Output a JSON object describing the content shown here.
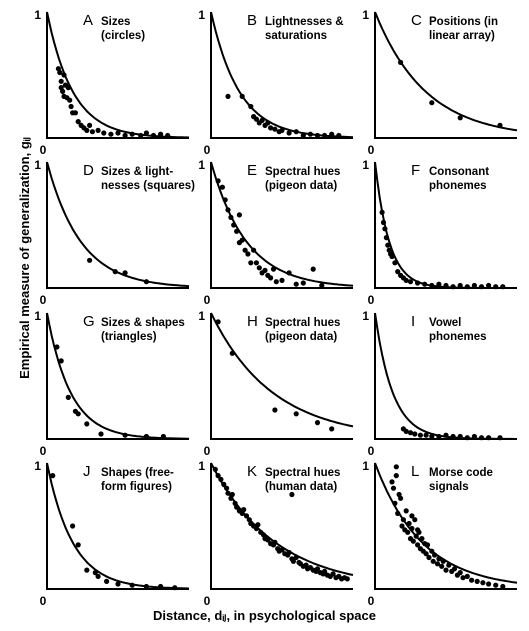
{
  "figure": {
    "ylabel": "Empirical measure of generalization, gᵢⱼ",
    "xlabel": "Distance, dᵢⱼ, in psychological space",
    "axis_one": "1",
    "axis_zero": "0"
  },
  "chart_data": [
    {
      "type": "scatter",
      "letter": "A",
      "label_lines": [
        "Sizes",
        "(circles)"
      ],
      "k": 5.5,
      "xlim": [
        0,
        1
      ],
      "ylim": [
        0,
        1
      ],
      "points": [
        [
          0.08,
          0.55
        ],
        [
          0.09,
          0.52
        ],
        [
          0.1,
          0.45
        ],
        [
          0.1,
          0.4
        ],
        [
          0.11,
          0.37
        ],
        [
          0.12,
          0.5
        ],
        [
          0.12,
          0.33
        ],
        [
          0.13,
          0.42
        ],
        [
          0.14,
          0.32
        ],
        [
          0.15,
          0.4
        ],
        [
          0.16,
          0.3
        ],
        [
          0.17,
          0.25
        ],
        [
          0.18,
          0.2
        ],
        [
          0.2,
          0.2
        ],
        [
          0.22,
          0.13
        ],
        [
          0.24,
          0.1
        ],
        [
          0.26,
          0.08
        ],
        [
          0.28,
          0.06
        ],
        [
          0.3,
          0.1
        ],
        [
          0.32,
          0.05
        ],
        [
          0.36,
          0.06
        ],
        [
          0.4,
          0.04
        ],
        [
          0.45,
          0.03
        ],
        [
          0.5,
          0.04
        ],
        [
          0.55,
          0.02
        ],
        [
          0.6,
          0.03
        ],
        [
          0.66,
          0.02
        ],
        [
          0.7,
          0.04
        ],
        [
          0.75,
          0.02
        ],
        [
          0.8,
          0.03
        ],
        [
          0.85,
          0.02
        ]
      ]
    },
    {
      "type": "scatter",
      "letter": "B",
      "label_lines": [
        "Lightnesses &",
        "saturations"
      ],
      "k": 5,
      "xlim": [
        0,
        1
      ],
      "ylim": [
        0,
        1
      ],
      "points": [
        [
          0.12,
          0.33
        ],
        [
          0.22,
          0.33
        ],
        [
          0.28,
          0.25
        ],
        [
          0.3,
          0.17
        ],
        [
          0.32,
          0.15
        ],
        [
          0.34,
          0.12
        ],
        [
          0.36,
          0.14
        ],
        [
          0.38,
          0.1
        ],
        [
          0.4,
          0.12
        ],
        [
          0.42,
          0.08
        ],
        [
          0.45,
          0.07
        ],
        [
          0.48,
          0.05
        ],
        [
          0.5,
          0.06
        ],
        [
          0.55,
          0.04
        ],
        [
          0.6,
          0.05
        ],
        [
          0.65,
          0.02
        ],
        [
          0.7,
          0.03
        ],
        [
          0.75,
          0.02
        ],
        [
          0.8,
          0.02
        ],
        [
          0.85,
          0.03
        ],
        [
          0.9,
          0.02
        ]
      ]
    },
    {
      "type": "scatter",
      "letter": "C",
      "label_lines": [
        "Positions (in",
        "linear array)"
      ],
      "k": 2.8,
      "xlim": [
        0,
        1
      ],
      "ylim": [
        0,
        1
      ],
      "points": [
        [
          0.18,
          0.6
        ],
        [
          0.4,
          0.28
        ],
        [
          0.6,
          0.16
        ],
        [
          0.88,
          0.1
        ]
      ]
    },
    {
      "type": "scatter",
      "letter": "D",
      "label_lines": [
        "Sizes & light-",
        "nesses (squares)"
      ],
      "k": 4.2,
      "xlim": [
        0,
        1
      ],
      "ylim": [
        0,
        1
      ],
      "points": [
        [
          0.3,
          0.22
        ],
        [
          0.48,
          0.13
        ],
        [
          0.55,
          0.12
        ],
        [
          0.7,
          0.05
        ]
      ]
    },
    {
      "type": "scatter",
      "letter": "E",
      "label_lines": [
        "Spectral hues",
        "(pigeon data)"
      ],
      "k": 4,
      "xlim": [
        0,
        1
      ],
      "ylim": [
        0,
        1
      ],
      "points": [
        [
          0.05,
          0.85
        ],
        [
          0.08,
          0.8
        ],
        [
          0.1,
          0.7
        ],
        [
          0.12,
          0.62
        ],
        [
          0.14,
          0.56
        ],
        [
          0.16,
          0.5
        ],
        [
          0.18,
          0.45
        ],
        [
          0.2,
          0.58
        ],
        [
          0.2,
          0.36
        ],
        [
          0.22,
          0.38
        ],
        [
          0.24,
          0.3
        ],
        [
          0.26,
          0.27
        ],
        [
          0.28,
          0.2
        ],
        [
          0.3,
          0.3
        ],
        [
          0.32,
          0.2
        ],
        [
          0.34,
          0.16
        ],
        [
          0.36,
          0.12
        ],
        [
          0.38,
          0.14
        ],
        [
          0.4,
          0.1
        ],
        [
          0.42,
          0.08
        ],
        [
          0.44,
          0.15
        ],
        [
          0.46,
          0.05
        ],
        [
          0.5,
          0.06
        ],
        [
          0.55,
          0.12
        ],
        [
          0.6,
          0.03
        ],
        [
          0.65,
          0.04
        ],
        [
          0.72,
          0.15
        ],
        [
          0.78,
          0.02
        ]
      ]
    },
    {
      "type": "scatter",
      "letter": "F",
      "label_lines": [
        "Consonant",
        "phonemes"
      ],
      "k": 10,
      "xlim": [
        0,
        1
      ],
      "ylim": [
        0,
        1
      ],
      "points": [
        [
          0.05,
          0.6
        ],
        [
          0.06,
          0.52
        ],
        [
          0.07,
          0.47
        ],
        [
          0.08,
          0.4
        ],
        [
          0.09,
          0.34
        ],
        [
          0.1,
          0.3
        ],
        [
          0.11,
          0.27
        ],
        [
          0.12,
          0.25
        ],
        [
          0.14,
          0.2
        ],
        [
          0.16,
          0.13
        ],
        [
          0.18,
          0.1
        ],
        [
          0.2,
          0.08
        ],
        [
          0.22,
          0.06
        ],
        [
          0.25,
          0.05
        ],
        [
          0.3,
          0.04
        ],
        [
          0.35,
          0.03
        ],
        [
          0.4,
          0.02
        ],
        [
          0.45,
          0.03
        ],
        [
          0.5,
          0.02
        ],
        [
          0.55,
          0.01
        ],
        [
          0.6,
          0.02
        ],
        [
          0.65,
          0.01
        ],
        [
          0.7,
          0.02
        ],
        [
          0.75,
          0.01
        ],
        [
          0.8,
          0.02
        ],
        [
          0.85,
          0.01
        ],
        [
          0.9,
          0.01
        ]
      ]
    },
    {
      "type": "scatter",
      "letter": "G",
      "label_lines": [
        "Sizes & shapes",
        "(triangles)"
      ],
      "k": 6,
      "xlim": [
        0,
        1
      ],
      "ylim": [
        0,
        1
      ],
      "points": [
        [
          0.07,
          0.73
        ],
        [
          0.1,
          0.62
        ],
        [
          0.15,
          0.33
        ],
        [
          0.2,
          0.22
        ],
        [
          0.22,
          0.2
        ],
        [
          0.28,
          0.12
        ],
        [
          0.38,
          0.04
        ],
        [
          0.55,
          0.03
        ],
        [
          0.7,
          0.02
        ],
        [
          0.82,
          0.02
        ]
      ]
    },
    {
      "type": "scatter",
      "letter": "H",
      "label_lines": [
        "Spectral hues",
        "(pigeon data)"
      ],
      "k": 2.3,
      "xlim": [
        0,
        1
      ],
      "ylim": [
        0,
        1
      ],
      "points": [
        [
          0.05,
          0.93
        ],
        [
          0.15,
          0.68
        ],
        [
          0.45,
          0.23
        ],
        [
          0.6,
          0.2
        ],
        [
          0.75,
          0.13
        ],
        [
          0.85,
          0.08
        ]
      ]
    },
    {
      "type": "scatter",
      "letter": "I",
      "label_lines": [
        "Vowel",
        "phonemes"
      ],
      "k": 8,
      "xlim": [
        0,
        1
      ],
      "ylim": [
        0,
        1
      ],
      "points": [
        [
          0.2,
          0.08
        ],
        [
          0.22,
          0.06
        ],
        [
          0.25,
          0.05
        ],
        [
          0.28,
          0.04
        ],
        [
          0.32,
          0.03
        ],
        [
          0.36,
          0.03
        ],
        [
          0.4,
          0.02
        ],
        [
          0.45,
          0.02
        ],
        [
          0.5,
          0.03
        ],
        [
          0.55,
          0.02
        ],
        [
          0.6,
          0.02
        ],
        [
          0.65,
          0.01
        ],
        [
          0.7,
          0.02
        ],
        [
          0.75,
          0.01
        ],
        [
          0.8,
          0.01
        ],
        [
          0.88,
          0.01
        ]
      ]
    },
    {
      "type": "scatter",
      "letter": "J",
      "label_lines": [
        "Shapes (free-",
        "form figures)"
      ],
      "k": 5.5,
      "xlim": [
        0,
        1
      ],
      "ylim": [
        0,
        1
      ],
      "points": [
        [
          0.04,
          0.9
        ],
        [
          0.18,
          0.5
        ],
        [
          0.22,
          0.35
        ],
        [
          0.28,
          0.15
        ],
        [
          0.34,
          0.13
        ],
        [
          0.36,
          0.1
        ],
        [
          0.42,
          0.06
        ],
        [
          0.5,
          0.04
        ],
        [
          0.6,
          0.03
        ],
        [
          0.7,
          0.02
        ],
        [
          0.8,
          0.02
        ],
        [
          0.9,
          0.01
        ]
      ]
    },
    {
      "type": "scatter",
      "letter": "K",
      "label_lines": [
        "Spectral hues",
        "(human data)"
      ],
      "k": 2.2,
      "xlim": [
        0,
        1
      ],
      "ylim": [
        0,
        1
      ],
      "points": [
        [
          0.03,
          0.95
        ],
        [
          0.05,
          0.9
        ],
        [
          0.07,
          0.87
        ],
        [
          0.09,
          0.83
        ],
        [
          0.11,
          0.8
        ],
        [
          0.12,
          0.76
        ],
        [
          0.14,
          0.72
        ],
        [
          0.15,
          0.75
        ],
        [
          0.17,
          0.68
        ],
        [
          0.18,
          0.65
        ],
        [
          0.2,
          0.62
        ],
        [
          0.22,
          0.6
        ],
        [
          0.23,
          0.63
        ],
        [
          0.25,
          0.58
        ],
        [
          0.27,
          0.55
        ],
        [
          0.28,
          0.52
        ],
        [
          0.3,
          0.5
        ],
        [
          0.32,
          0.48
        ],
        [
          0.33,
          0.51
        ],
        [
          0.35,
          0.45
        ],
        [
          0.37,
          0.43
        ],
        [
          0.38,
          0.4
        ],
        [
          0.4,
          0.39
        ],
        [
          0.42,
          0.36
        ],
        [
          0.44,
          0.35
        ],
        [
          0.45,
          0.37
        ],
        [
          0.47,
          0.32
        ],
        [
          0.48,
          0.3
        ],
        [
          0.5,
          0.31
        ],
        [
          0.52,
          0.28
        ],
        [
          0.54,
          0.27
        ],
        [
          0.55,
          0.29
        ],
        [
          0.57,
          0.24
        ],
        [
          0.58,
          0.22
        ],
        [
          0.6,
          0.25
        ],
        [
          0.62,
          0.21
        ],
        [
          0.63,
          0.2
        ],
        [
          0.65,
          0.18
        ],
        [
          0.67,
          0.19
        ],
        [
          0.68,
          0.16
        ],
        [
          0.7,
          0.17
        ],
        [
          0.72,
          0.15
        ],
        [
          0.74,
          0.14
        ],
        [
          0.75,
          0.16
        ],
        [
          0.77,
          0.13
        ],
        [
          0.79,
          0.12
        ],
        [
          0.8,
          0.14
        ],
        [
          0.82,
          0.11
        ],
        [
          0.84,
          0.1
        ],
        [
          0.86,
          0.12
        ],
        [
          0.88,
          0.09
        ],
        [
          0.9,
          0.1
        ],
        [
          0.92,
          0.08
        ],
        [
          0.94,
          0.09
        ],
        [
          0.96,
          0.08
        ],
        [
          0.57,
          0.75
        ]
      ]
    },
    {
      "type": "scatter",
      "letter": "L",
      "label_lines": [
        "Morse code",
        "signals"
      ],
      "k": 3,
      "xlim": [
        0,
        1
      ],
      "ylim": [
        0,
        1
      ],
      "points": [
        [
          0.12,
          0.85
        ],
        [
          0.13,
          0.8
        ],
        [
          0.15,
          0.9
        ],
        [
          0.17,
          0.75
        ],
        [
          0.14,
          0.68
        ],
        [
          0.16,
          0.6
        ],
        [
          0.18,
          0.72
        ],
        [
          0.2,
          0.55
        ],
        [
          0.19,
          0.5
        ],
        [
          0.22,
          0.62
        ],
        [
          0.23,
          0.45
        ],
        [
          0.24,
          0.52
        ],
        [
          0.25,
          0.4
        ],
        [
          0.26,
          0.48
        ],
        [
          0.27,
          0.38
        ],
        [
          0.28,
          0.55
        ],
        [
          0.29,
          0.42
        ],
        [
          0.3,
          0.35
        ],
        [
          0.31,
          0.45
        ],
        [
          0.32,
          0.32
        ],
        [
          0.33,
          0.4
        ],
        [
          0.34,
          0.3
        ],
        [
          0.35,
          0.36
        ],
        [
          0.36,
          0.28
        ],
        [
          0.37,
          0.35
        ],
        [
          0.38,
          0.25
        ],
        [
          0.4,
          0.3
        ],
        [
          0.41,
          0.22
        ],
        [
          0.42,
          0.27
        ],
        [
          0.44,
          0.2
        ],
        [
          0.45,
          0.24
        ],
        [
          0.47,
          0.18
        ],
        [
          0.48,
          0.22
        ],
        [
          0.5,
          0.15
        ],
        [
          0.52,
          0.19
        ],
        [
          0.54,
          0.14
        ],
        [
          0.56,
          0.16
        ],
        [
          0.58,
          0.11
        ],
        [
          0.6,
          0.13
        ],
        [
          0.62,
          0.09
        ],
        [
          0.65,
          0.1
        ],
        [
          0.68,
          0.07
        ],
        [
          0.72,
          0.06
        ],
        [
          0.76,
          0.05
        ],
        [
          0.8,
          0.04
        ],
        [
          0.85,
          0.03
        ],
        [
          0.9,
          0.02
        ],
        [
          0.15,
          0.97
        ],
        [
          0.21,
          0.47
        ],
        [
          0.26,
          0.58
        ],
        [
          0.3,
          0.47
        ]
      ]
    }
  ]
}
